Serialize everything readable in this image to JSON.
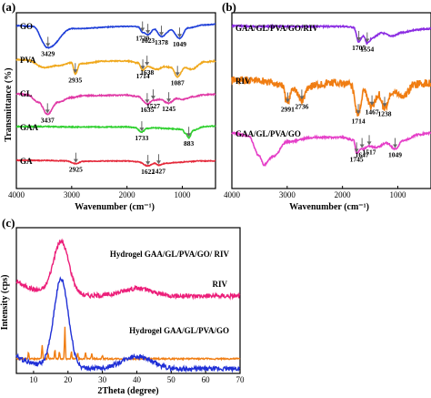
{
  "chart_data": [
    {
      "panel": "(a)",
      "type": "line",
      "xlabel": "Wavenumber (cm⁻¹)",
      "ylabel": "Transmittance (%)",
      "xlim": [
        4000,
        400
      ],
      "xticks": [
        4000,
        3000,
        2000,
        1000
      ],
      "series": [
        {
          "name": "GO",
          "color": "#1f3fd8",
          "base": 0.25,
          "noise": 0.004,
          "x": [
            4000,
            3700,
            3429,
            3000,
            2000,
            1900,
            1800,
            1720,
            1623,
            1500,
            1378,
            1200,
            1049,
            900,
            600,
            400
          ],
          "y": [
            0.26,
            0.3,
            1.45,
            0.42,
            0.3,
            0.3,
            0.32,
            0.62,
            0.75,
            0.45,
            0.85,
            0.5,
            0.95,
            0.38,
            0.22,
            0.18
          ],
          "peaks": [
            {
              "x": 3429,
              "label": "3429"
            },
            {
              "x": 1720,
              "label": "1720"
            },
            {
              "x": 1623,
              "label": "1623"
            },
            {
              "x": 1378,
              "label": "1378"
            },
            {
              "x": 1049,
              "label": "1049"
            }
          ]
        },
        {
          "name": "PVA",
          "color": "#f0a81c",
          "base": 1.75,
          "noise": 0.006,
          "x": [
            4000,
            3800,
            3500,
            3250,
            3000,
            2935,
            2850,
            2400,
            2000,
            1800,
            1714,
            1638,
            1450,
            1330,
            1200,
            1087,
            950,
            840,
            600,
            400
          ],
          "y": [
            1.78,
            1.8,
            2.2,
            2.1,
            1.95,
            2.55,
            2.0,
            1.85,
            1.85,
            1.95,
            2.35,
            2.15,
            2.3,
            2.15,
            2.2,
            2.7,
            2.2,
            2.3,
            1.9,
            1.85
          ],
          "peaks": [
            {
              "x": 2935,
              "label": "2935"
            },
            {
              "x": 1714,
              "label": "1714"
            },
            {
              "x": 1638,
              "label": "1638"
            },
            {
              "x": 1087,
              "label": "1087"
            }
          ]
        },
        {
          "name": "GL",
          "color": "#e03aa6",
          "base": 2.7,
          "noise": 0.006,
          "x": [
            4000,
            3800,
            3600,
            3437,
            3250,
            3000,
            2800,
            2000,
            1800,
            1635,
            1527,
            1400,
            1245,
            1100,
            1000,
            800,
            600,
            400
          ],
          "y": [
            2.75,
            2.8,
            3.2,
            3.85,
            3.2,
            2.95,
            2.85,
            2.82,
            2.9,
            3.3,
            3.1,
            3.05,
            3.25,
            3.0,
            3.05,
            2.9,
            2.8,
            2.78
          ],
          "peaks": [
            {
              "x": 3437,
              "label": "3437"
            },
            {
              "x": 1635,
              "label": "1635"
            },
            {
              "x": 1527,
              "label": "1527"
            },
            {
              "x": 1245,
              "label": "1245"
            }
          ]
        },
        {
          "name": "GAA",
          "color": "#2ed02e",
          "base": 3.95,
          "noise": 0.005,
          "x": [
            4000,
            3500,
            3000,
            2500,
            2000,
            1850,
            1733,
            1650,
            1500,
            1300,
            1100,
            1000,
            950,
            883,
            800,
            600,
            400
          ],
          "y": [
            3.95,
            3.95,
            3.97,
            3.97,
            3.97,
            4.0,
            4.25,
            4.05,
            4.02,
            4.05,
            4.08,
            4.1,
            4.3,
            4.55,
            4.15,
            3.95,
            3.92
          ],
          "peaks": [
            {
              "x": 1733,
              "label": "1733"
            },
            {
              "x": 883,
              "label": "883"
            }
          ]
        },
        {
          "name": "GA",
          "color": "#e4293a",
          "base": 4.82,
          "noise": 0.004,
          "x": [
            4000,
            3500,
            3100,
            2925,
            2800,
            2500,
            2000,
            1800,
            1622,
            1500,
            1427,
            1300,
            1100,
            900,
            700,
            400
          ],
          "y": [
            4.82,
            4.83,
            4.85,
            5.0,
            4.88,
            4.86,
            4.86,
            4.9,
            5.12,
            4.98,
            5.08,
            4.98,
            4.94,
            4.9,
            4.86,
            4.85
          ],
          "peaks": [
            {
              "x": 2925,
              "label": "2925"
            },
            {
              "x": 1622,
              "label": "1622"
            },
            {
              "x": 1427,
              "label": "1427"
            }
          ]
        }
      ]
    },
    {
      "panel": "(b)",
      "type": "line",
      "xlabel": "Wavenumber (cm⁻¹)",
      "ylabel": "",
      "xlim": [
        4000,
        400
      ],
      "xticks": [
        4000,
        3000,
        2000,
        1000
      ],
      "series": [
        {
          "name": "GAA/GL/PVA/GO/RIV",
          "color": "#8a2be2",
          "base": 0.25,
          "noise": 0.005,
          "x": [
            4000,
            3500,
            3000,
            2500,
            2000,
            1800,
            1705,
            1620,
            1554,
            1450,
            1300,
            1100,
            900,
            700,
            500,
            400
          ],
          "y": [
            0.2,
            0.22,
            0.22,
            0.22,
            0.22,
            0.25,
            0.75,
            0.55,
            0.8,
            0.6,
            0.45,
            0.55,
            0.42,
            0.35,
            0.3,
            0.3
          ],
          "peaks": [
            {
              "x": 1705,
              "label": "1705"
            },
            {
              "x": 1554,
              "label": "1554"
            }
          ]
        },
        {
          "name": "RIV",
          "color": "#f07d12",
          "base": 1.3,
          "noise": 0.028,
          "x": [
            4000,
            3500,
            3100,
            2991,
            2900,
            2736,
            2600,
            2200,
            1850,
            1714,
            1620,
            1467,
            1350,
            1238,
            1100,
            900,
            700,
            400
          ],
          "y": [
            1.3,
            1.32,
            1.45,
            2.1,
            1.55,
            2.0,
            1.5,
            1.4,
            1.45,
            2.5,
            1.7,
            2.2,
            1.8,
            2.25,
            1.7,
            1.85,
            1.45,
            1.4
          ],
          "peaks": [
            {
              "x": 2991,
              "label": "2991"
            },
            {
              "x": 2736,
              "label": "2736"
            },
            {
              "x": 1714,
              "label": "1714"
            },
            {
              "x": 1467,
              "label": "1467"
            },
            {
              "x": 1238,
              "label": "1238"
            }
          ]
        },
        {
          "name": "GAA/GL/PVA/GO",
          "color": "#e53fc8",
          "base": 3.0,
          "noise": 0.006,
          "x": [
            4000,
            3700,
            3500,
            3420,
            3250,
            3000,
            2500,
            2000,
            1800,
            1745,
            1647,
            1517,
            1400,
            1200,
            1049,
            900,
            600,
            400
          ],
          "y": [
            3.0,
            3.1,
            3.8,
            4.1,
            3.8,
            3.3,
            3.15,
            3.15,
            3.25,
            3.7,
            3.55,
            3.45,
            3.5,
            3.35,
            3.55,
            3.25,
            3.05,
            3.0
          ],
          "peaks": [
            {
              "x": 1745,
              "label": "1745"
            },
            {
              "x": 1647,
              "label": "1647"
            },
            {
              "x": 1517,
              "label": "1517"
            },
            {
              "x": 1049,
              "label": "1049"
            }
          ]
        }
      ]
    },
    {
      "panel": "(c)",
      "type": "line",
      "xlabel": "2Theta (degree)",
      "ylabel": "Intensity (cps)",
      "xlim": [
        5,
        70
      ],
      "xticks": [
        10,
        20,
        30,
        40,
        50,
        60,
        70
      ],
      "series": [
        {
          "name": "Hydrogel GAA/GL/PVA/GO/ RIV",
          "color": "#ec1e79",
          "kind": "broad",
          "base": 0.58,
          "peak_x": 18,
          "peak_h": 0.42,
          "peak_w": 3.2,
          "hump_x": 40,
          "hump_h": 0.06,
          "hump_w": 6,
          "tail": 0.12,
          "noise": 0.018
        },
        {
          "name": "RIV",
          "color": "#f07d12",
          "kind": "sharp",
          "base": 0.08,
          "peaks": [
            [
              8.5,
              0.05
            ],
            [
              12.5,
              0.11
            ],
            [
              14.2,
              0.05
            ],
            [
              16.2,
              0.07
            ],
            [
              17.5,
              0.06
            ],
            [
              19.1,
              0.25
            ],
            [
              21.0,
              0.06
            ],
            [
              22.8,
              0.05
            ],
            [
              25.1,
              0.05
            ],
            [
              26.9,
              0.04
            ],
            [
              30.0,
              0.03
            ]
          ],
          "noise": 0.006
        },
        {
          "name": "Hydrogel GAA/GL/PVA/GO",
          "color": "#1f2fd6",
          "kind": "broad",
          "base": 0.0,
          "peak_x": 18,
          "peak_h": 0.7,
          "peak_w": 3.0,
          "hump_x": 40,
          "hump_h": 0.1,
          "hump_w": 6,
          "tail": 0.1,
          "noise": 0.018
        }
      ]
    }
  ]
}
